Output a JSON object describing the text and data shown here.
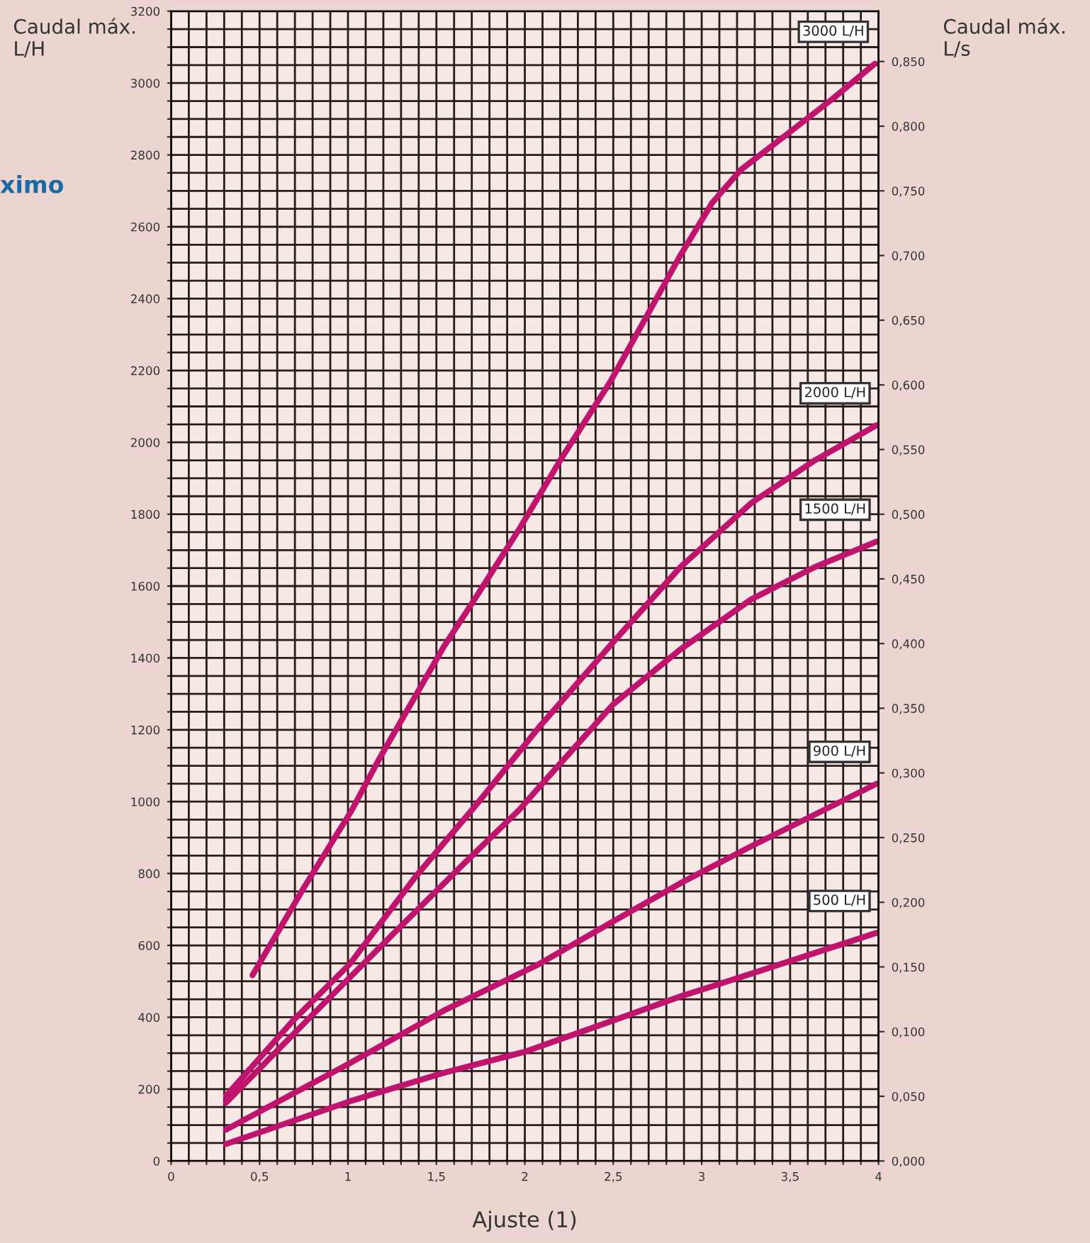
{
  "chart_data": {
    "type": "line",
    "xlabel": "Ajuste (1)",
    "ylabel": "Caudal máx.\nL/H",
    "y2label": "Caudal máx.\nL/s",
    "annotations": [
      "ximo"
    ],
    "xlim": [
      0,
      4
    ],
    "ylim": [
      0,
      3200
    ],
    "y2lim": [
      0,
      0.8889
    ],
    "xticks": [
      0,
      {
        "value": 0.1,
        "label": null
      },
      {
        "value": 0.2,
        "label": null
      },
      {
        "value": 0.3,
        "label": null
      },
      {
        "value": 0.4,
        "label": null
      },
      {
        "value": 0.5,
        "label": "0,5"
      },
      {
        "value": 0.6,
        "label": null
      },
      {
        "value": 0.7,
        "label": null
      },
      {
        "value": 0.8,
        "label": null
      },
      {
        "value": 0.9,
        "label": null
      },
      1,
      {
        "value": 1.1,
        "label": null
      },
      {
        "value": 1.2,
        "label": null
      },
      {
        "value": 1.3,
        "label": null
      },
      {
        "value": 1.4,
        "label": null
      },
      {
        "value": 1.5,
        "label": "1,5"
      },
      {
        "value": 1.6,
        "label": null
      },
      {
        "value": 1.7,
        "label": null
      },
      {
        "value": 1.8,
        "label": null
      },
      {
        "value": 1.9,
        "label": null
      },
      2,
      {
        "value": 2.1,
        "label": null
      },
      {
        "value": 2.2,
        "label": null
      },
      {
        "value": 2.3,
        "label": null
      },
      {
        "value": 2.4,
        "label": null
      },
      {
        "value": 2.5,
        "label": "2,5"
      },
      {
        "value": 2.6,
        "label": null
      },
      {
        "value": 2.7,
        "label": null
      },
      {
        "value": 2.8,
        "label": null
      },
      {
        "value": 2.9,
        "label": null
      },
      3,
      {
        "value": 3.1,
        "label": null
      },
      {
        "value": 3.2,
        "label": null
      },
      {
        "value": 3.3,
        "label": null
      },
      {
        "value": 3.4,
        "label": null
      },
      {
        "value": 3.5,
        "label": "3,5"
      },
      {
        "value": 3.6,
        "label": null
      },
      {
        "value": 3.7,
        "label": null
      },
      {
        "value": 3.8,
        "label": null
      },
      {
        "value": 3.9,
        "label": null
      },
      4
    ],
    "yticks": [
      0,
      {
        "value": 50,
        "label": null
      },
      {
        "value": 100,
        "label": null
      },
      {
        "value": 150,
        "label": null
      },
      200,
      {
        "value": 250,
        "label": null
      },
      {
        "value": 300,
        "label": null
      },
      {
        "value": 350,
        "label": null
      },
      400,
      {
        "value": 450,
        "label": null
      },
      {
        "value": 500,
        "label": null
      },
      {
        "value": 550,
        "label": null
      },
      600,
      {
        "value": 650,
        "label": null
      },
      {
        "value": 700,
        "label": null
      },
      {
        "value": 750,
        "label": null
      },
      800,
      {
        "value": 850,
        "label": null
      },
      {
        "value": 900,
        "label": null
      },
      {
        "value": 950,
        "label": null
      },
      1000,
      {
        "value": 1050,
        "label": null
      },
      {
        "value": 1100,
        "label": null
      },
      {
        "value": 1150,
        "label": null
      },
      1200,
      {
        "value": 1250,
        "label": null
      },
      {
        "value": 1300,
        "label": null
      },
      {
        "value": 1350,
        "label": null
      },
      1400,
      {
        "value": 1450,
        "label": null
      },
      {
        "value": 1500,
        "label": null
      },
      {
        "value": 1550,
        "label": null
      },
      1600,
      {
        "value": 1650,
        "label": null
      },
      {
        "value": 1700,
        "label": null
      },
      {
        "value": 1750,
        "label": null
      },
      1800,
      {
        "value": 1850,
        "label": null
      },
      {
        "value": 1900,
        "label": null
      },
      {
        "value": 1950,
        "label": null
      },
      2000,
      {
        "value": 2050,
        "label": null
      },
      {
        "value": 2100,
        "label": null
      },
      {
        "value": 2150,
        "label": null
      },
      2200,
      {
        "value": 2250,
        "label": null
      },
      {
        "value": 2300,
        "label": null
      },
      {
        "value": 2350,
        "label": null
      },
      2400,
      {
        "value": 2450,
        "label": null
      },
      {
        "value": 2500,
        "label": null
      },
      {
        "value": 2550,
        "label": null
      },
      2600,
      {
        "value": 2650,
        "label": null
      },
      {
        "value": 2700,
        "label": null
      },
      {
        "value": 2750,
        "label": null
      },
      2800,
      {
        "value": 2850,
        "label": null
      },
      {
        "value": 2900,
        "label": null
      },
      {
        "value": 2950,
        "label": null
      },
      3000,
      {
        "value": 3050,
        "label": null
      },
      {
        "value": 3100,
        "label": null
      },
      {
        "value": 3150,
        "label": null
      },
      3200
    ],
    "y2ticks": [
      {
        "value": 0,
        "label": "0,000"
      },
      {
        "value": 0.05,
        "label": "0,050"
      },
      {
        "value": 0.1,
        "label": "0,100"
      },
      {
        "value": 0.15,
        "label": "0,150"
      },
      {
        "value": 0.2,
        "label": "0,200"
      },
      {
        "value": 0.25,
        "label": "0,250"
      },
      {
        "value": 0.3,
        "label": "0,300"
      },
      {
        "value": 0.35,
        "label": "0,350"
      },
      {
        "value": 0.4,
        "label": "0,400"
      },
      {
        "value": 0.45,
        "label": "0,450"
      },
      {
        "value": 0.5,
        "label": "0,500"
      },
      {
        "value": 0.55,
        "label": "0,550"
      },
      {
        "value": 0.6,
        "label": "0,600"
      },
      {
        "value": 0.65,
        "label": "0,650"
      },
      {
        "value": 0.7,
        "label": "0,700"
      },
      {
        "value": 0.75,
        "label": "0,750"
      },
      {
        "value": 0.8,
        "label": "0,800"
      },
      {
        "value": 0.85,
        "label": "0,850"
      }
    ],
    "grid": true,
    "marker": "none",
    "line_style": "solid",
    "series": [
      {
        "name": "3000 L/H",
        "color": "#c0136e",
        "x": [
          0.46,
          0.75,
          1.02,
          1.17,
          1.54,
          1.73,
          1.97,
          2.2,
          2.48,
          2.69,
          2.88,
          3.06,
          3.22,
          3.46,
          3.74,
          3.98
        ],
        "values": [
          517,
          760,
          975,
          1113,
          1430,
          1574,
          1760,
          1950,
          2166,
          2352,
          2521,
          2667,
          2758,
          2849,
          2956,
          3054
        ]
      },
      {
        "name": "2000 L/H",
        "color": "#c0136e",
        "x": [
          0.31,
          0.69,
          1.01,
          1.38,
          1.73,
          2.08,
          2.5,
          2.88,
          3.28,
          3.64,
          3.99
        ],
        "values": [
          181,
          391,
          548,
          790,
          994,
          1207,
          1444,
          1653,
          1831,
          1950,
          2048
        ]
      },
      {
        "name": "1500 L/H",
        "color": "#c0136e",
        "x": [
          0.31,
          0.79,
          1.27,
          1.65,
          1.97,
          2.08,
          2.5,
          2.88,
          3.28,
          3.64,
          3.99
        ],
        "values": [
          162,
          402,
          639,
          825,
          978,
          1040,
          1271,
          1424,
          1563,
          1653,
          1724
        ]
      },
      {
        "name": "900 L/H",
        "color": "#c0136e",
        "x": [
          0.31,
          1.01,
          1.54,
          2.08,
          2.5,
          2.88,
          3.28,
          3.99
        ],
        "values": [
          87,
          272,
          418,
          548,
          667,
          773,
          876,
          1050
        ]
      },
      {
        "name": "500 L/H",
        "color": "#c0136e",
        "x": [
          0.31,
          1.01,
          1.54,
          2.0,
          2.5,
          2.88,
          3.28,
          3.99
        ],
        "values": [
          47,
          166,
          245,
          304,
          391,
          458,
          521,
          635
        ]
      }
    ]
  }
}
